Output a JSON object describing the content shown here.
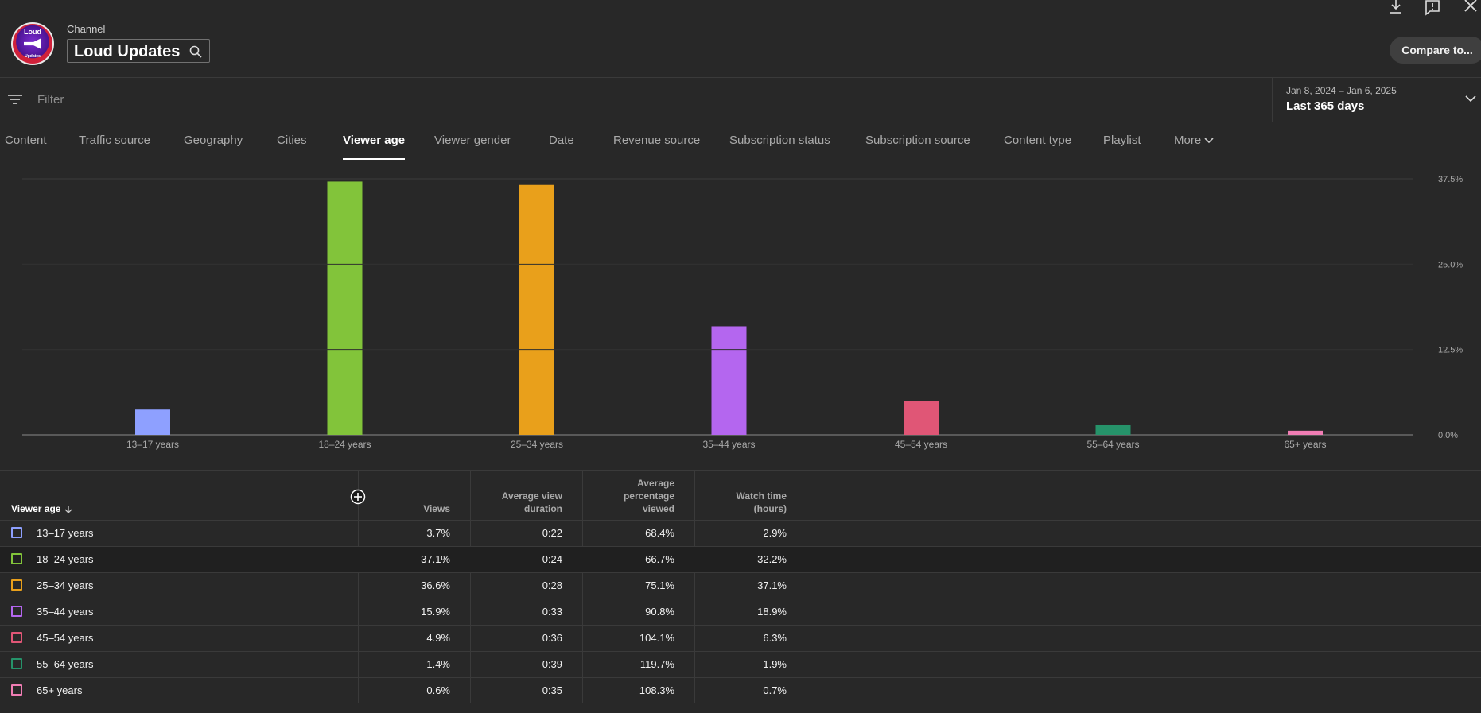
{
  "header": {
    "channel_label": "Channel",
    "channel_name": "Loud Updates",
    "avatar_text": "Loud",
    "avatar_subtext": "Updates",
    "compare_label": "Compare to..."
  },
  "filter": {
    "placeholder": "Filter",
    "date_range": "Jan 8, 2024 – Jan 6, 2025",
    "date_range_label": "Last 365 days"
  },
  "tabs": [
    {
      "label": "Content"
    },
    {
      "label": "Traffic source"
    },
    {
      "label": "Geography"
    },
    {
      "label": "Cities"
    },
    {
      "label": "Viewer age",
      "active": true
    },
    {
      "label": "Viewer gender"
    },
    {
      "label": "Date"
    },
    {
      "label": "Revenue source"
    },
    {
      "label": "Subscription status"
    },
    {
      "label": "Subscription source"
    },
    {
      "label": "Content type"
    },
    {
      "label": "Playlist"
    },
    {
      "label": "More"
    }
  ],
  "chart_data": {
    "type": "bar",
    "categories": [
      "13–17 years",
      "18–24 years",
      "25–34 years",
      "35–44 years",
      "45–54 years",
      "55–64 years",
      "65+ years"
    ],
    "values": [
      3.7,
      37.1,
      36.6,
      15.9,
      4.9,
      1.4,
      0.6
    ],
    "colors": [
      "#8ea0ff",
      "#82c43a",
      "#e9a01b",
      "#b466ef",
      "#e05676",
      "#26936a",
      "#f07db4"
    ],
    "ylim": [
      0,
      37.5
    ],
    "yticks": [
      "0.0%",
      "12.5%",
      "25.0%",
      "37.5%"
    ],
    "ytick_values": [
      0,
      12.5,
      25,
      37.5
    ],
    "grid": true
  },
  "table": {
    "headers": {
      "viewer_age": "Viewer age",
      "views": "Views",
      "avg_view_duration_1": "Average view",
      "avg_view_duration_2": "duration",
      "avg_pct_1": "Average",
      "avg_pct_2": "percentage",
      "avg_pct_3": "viewed",
      "watch_time_1": "Watch time",
      "watch_time_2": "(hours)"
    },
    "rows": [
      {
        "age": "13–17 years",
        "views": "3.7%",
        "duration": "0:22",
        "pct": "68.4%",
        "watch": "2.9%",
        "color": "#8ea0ff"
      },
      {
        "age": "18–24 years",
        "views": "37.1%",
        "duration": "0:24",
        "pct": "66.7%",
        "watch": "32.2%",
        "color": "#82c43a"
      },
      {
        "age": "25–34 years",
        "views": "36.6%",
        "duration": "0:28",
        "pct": "75.1%",
        "watch": "37.1%",
        "color": "#e9a01b"
      },
      {
        "age": "35–44 years",
        "views": "15.9%",
        "duration": "0:33",
        "pct": "90.8%",
        "watch": "18.9%",
        "color": "#b466ef"
      },
      {
        "age": "45–54 years",
        "views": "4.9%",
        "duration": "0:36",
        "pct": "104.1%",
        "watch": "6.3%",
        "color": "#e05676"
      },
      {
        "age": "55–64 years",
        "views": "1.4%",
        "duration": "0:39",
        "pct": "119.7%",
        "watch": "1.9%",
        "color": "#26936a"
      },
      {
        "age": "65+ years",
        "views": "0.6%",
        "duration": "0:35",
        "pct": "108.3%",
        "watch": "0.7%",
        "color": "#f07db4"
      }
    ]
  }
}
